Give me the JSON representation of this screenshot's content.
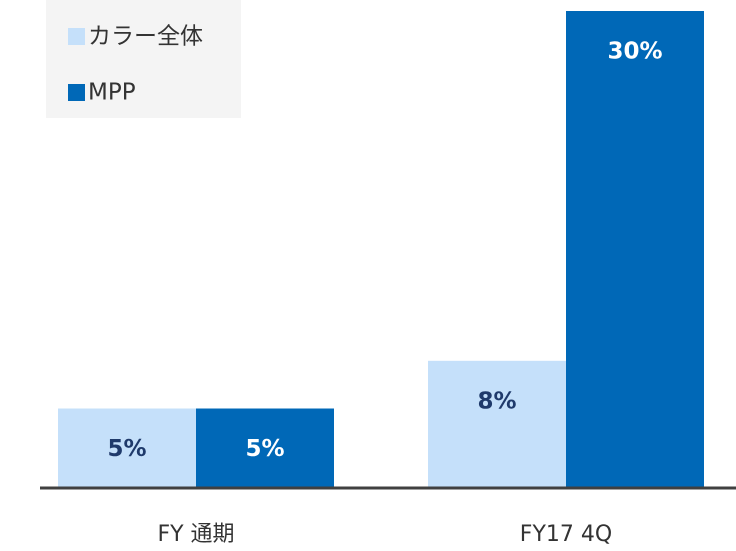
{
  "chart_data": {
    "type": "bar",
    "categories": [
      "FY 通期",
      "FY17 4Q"
    ],
    "series": [
      {
        "name": "カラー全体",
        "color": "#c5e0fa",
        "label_color": "#1f3a6b",
        "values": [
          5,
          8
        ],
        "value_labels": [
          "5%",
          "8%"
        ]
      },
      {
        "name": "MPP",
        "color": "#0068b7",
        "label_color": "#ffffff",
        "values": [
          5,
          30
        ],
        "value_labels": [
          "5%",
          "30%"
        ]
      }
    ],
    "legend": "upper left"
  }
}
